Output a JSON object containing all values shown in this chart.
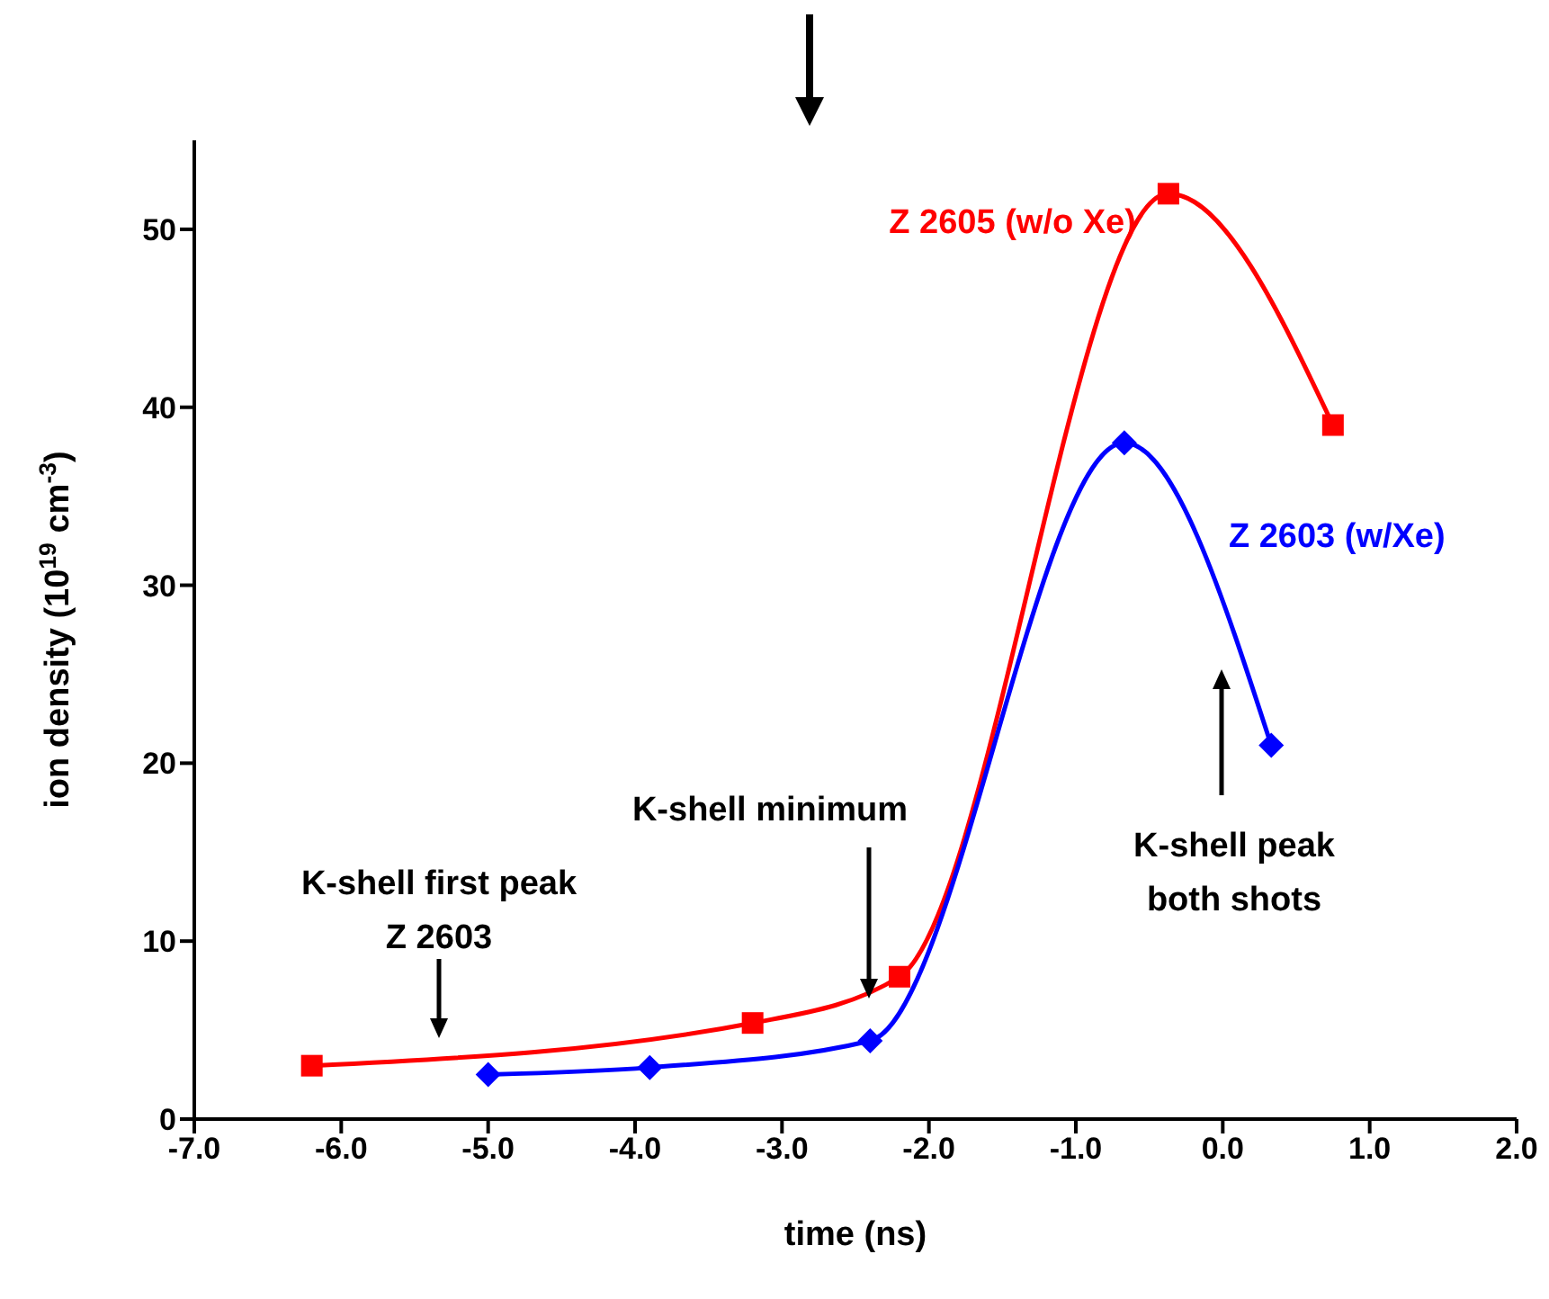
{
  "chart_data": {
    "type": "line",
    "xlabel": "time (ns)",
    "ylabel": "ion density (10$^{19}$ cm$^{-3}$)",
    "xlim": [
      -7,
      2
    ],
    "xticks": [
      {
        "value": -7,
        "label": "-7.0"
      },
      {
        "value": -6,
        "label": "-6.0"
      },
      {
        "value": -5,
        "label": "-5.0"
      },
      {
        "value": -4,
        "label": "-4.0"
      },
      {
        "value": -3,
        "label": "-3.0"
      },
      {
        "value": -2,
        "label": "-2.0"
      },
      {
        "value": -1,
        "label": "-1.0"
      },
      {
        "value": 0,
        "label": "0.0"
      },
      {
        "value": 1,
        "label": "1.0"
      },
      {
        "value": 2,
        "label": "2.0"
      }
    ],
    "ylim": [
      0,
      55
    ],
    "yticks": [
      0,
      10,
      20,
      30,
      40,
      50
    ],
    "grid": false,
    "series": [
      {
        "name": "Z 2605 (w/o Xe)",
        "color": "#ff0000",
        "marker": "square",
        "x": [
          -6.2,
          -3.2,
          -2.2,
          -0.37,
          0.75
        ],
        "values": [
          3.0,
          5.4,
          8.0,
          52,
          39
        ]
      },
      {
        "name": "Z 2603 (w/Xe)",
        "color": "#0000ff",
        "marker": "diamond",
        "x": [
          -5.0,
          -3.9,
          -2.4,
          -0.67,
          0.33
        ],
        "values": [
          2.5,
          2.9,
          4.4,
          38,
          21
        ]
      }
    ],
    "annotations": [
      "K-shell first peak\nZ 2603",
      "K-shell minimum",
      "K-shell peak\nboth shots"
    ]
  }
}
